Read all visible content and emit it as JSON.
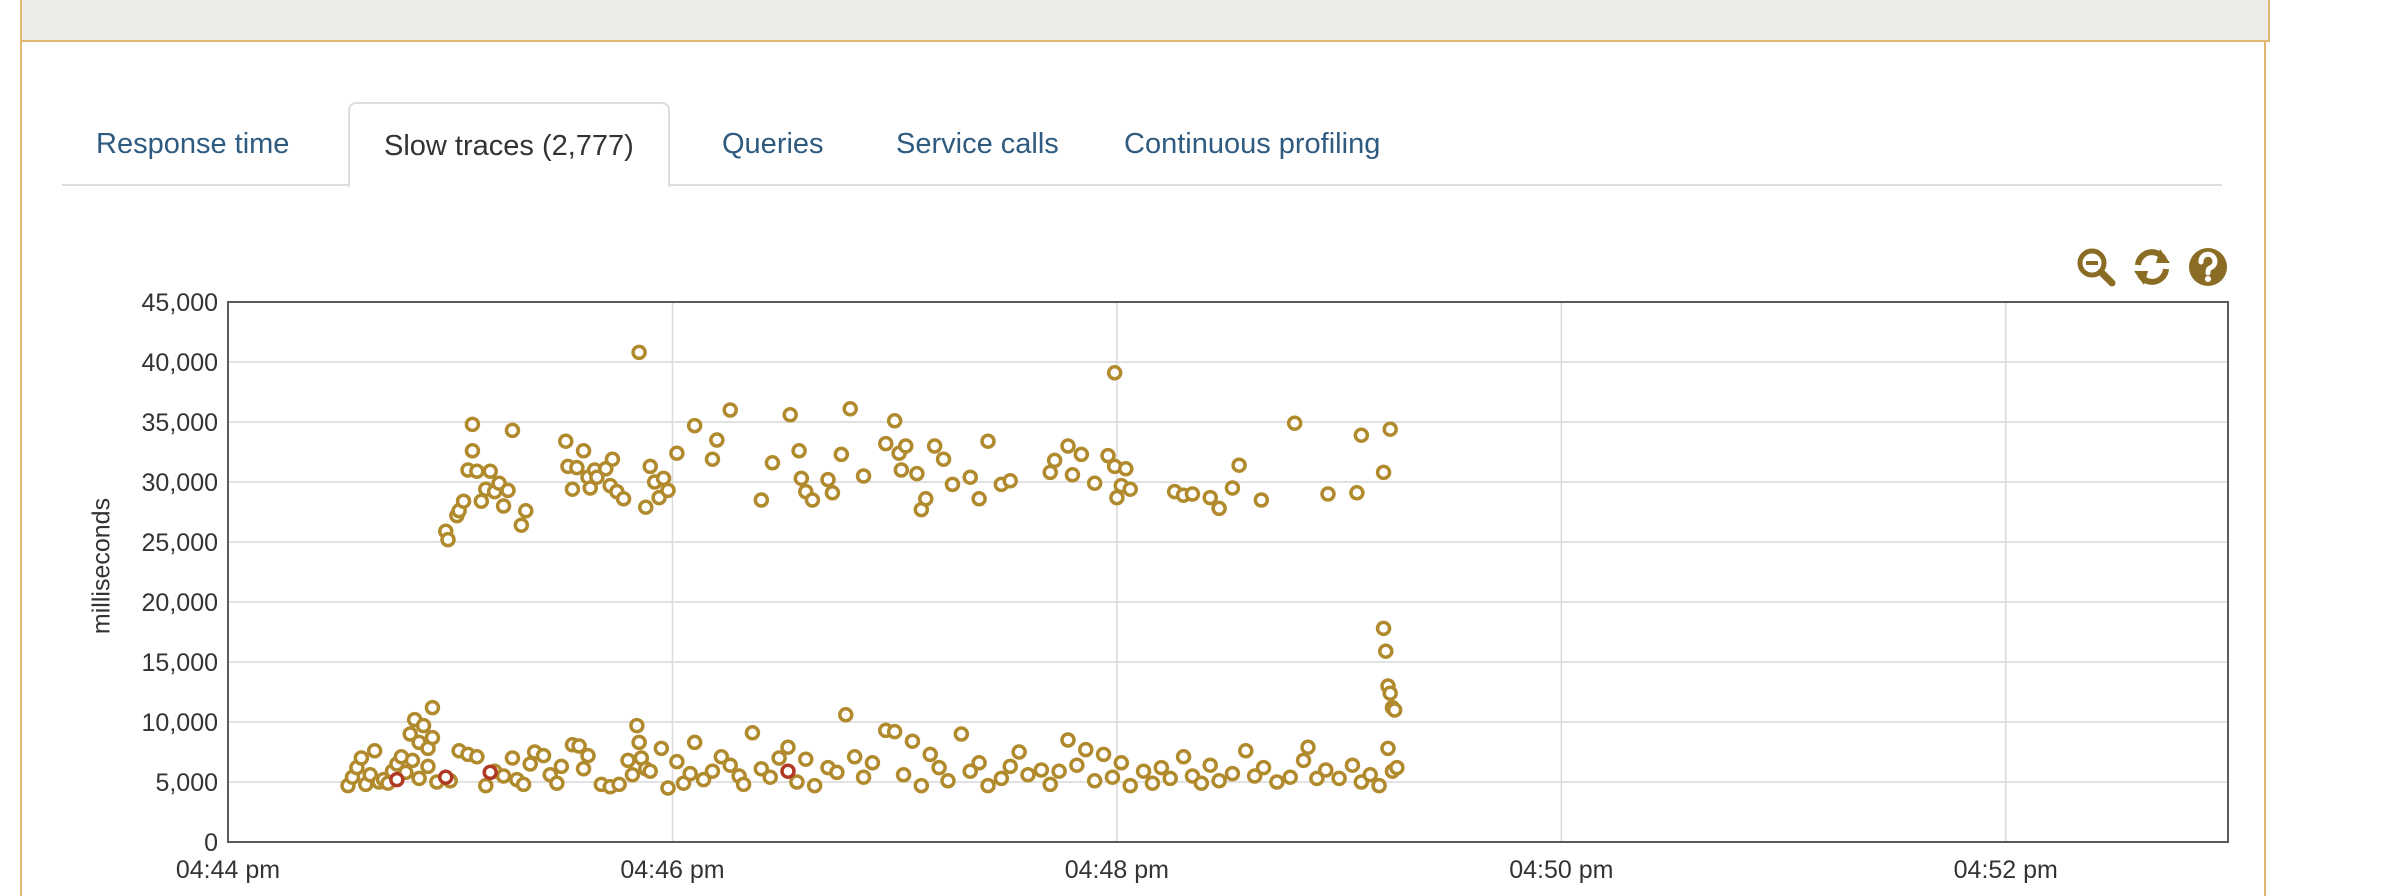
{
  "header": {
    "title": ""
  },
  "tabs": [
    {
      "label": "Response time",
      "active": false
    },
    {
      "label": "Slow traces (2,777)",
      "active": true
    },
    {
      "label": "Queries",
      "active": false
    },
    {
      "label": "Service calls",
      "active": false
    },
    {
      "label": "Continuous profiling",
      "active": false
    }
  ],
  "toolbar": {
    "icons": [
      "zoom-out-icon",
      "refresh-icon",
      "help-icon"
    ],
    "icon_color": "#8a6c24"
  },
  "colors": {
    "point_normal": "#b08a2c",
    "point_error": "#b03a24",
    "axis": "#5a5a5a",
    "grid": "#d9d9d9"
  },
  "chart_data": {
    "type": "scatter",
    "ylabel": "milliseconds",
    "xlabel": "",
    "title": "",
    "ylim": [
      0,
      45000
    ],
    "y_ticks": [
      "0",
      "5,000",
      "10,000",
      "15,000",
      "20,000",
      "25,000",
      "30,000",
      "35,000",
      "40,000",
      "45,000"
    ],
    "y_tick_values": [
      0,
      5000,
      10000,
      15000,
      20000,
      25000,
      30000,
      35000,
      40000,
      45000
    ],
    "xlim_minutes": [
      0,
      9
    ],
    "x_ticks": [
      "04:44 pm",
      "04:46 pm",
      "04:48 pm",
      "04:50 pm",
      "04:52 pm"
    ],
    "x_tick_minutes": [
      0,
      2,
      4,
      6,
      8
    ],
    "grid": true,
    "series": [
      {
        "name": "",
        "color": "#b08a2c",
        "points": [
          [
            0.54,
            4700
          ],
          [
            0.56,
            5400
          ],
          [
            0.58,
            6200
          ],
          [
            0.6,
            7000
          ],
          [
            0.62,
            4800
          ],
          [
            0.64,
            5600
          ],
          [
            0.66,
            7600
          ],
          [
            0.68,
            5000
          ],
          [
            0.7,
            5200
          ],
          [
            0.72,
            4900
          ],
          [
            0.74,
            5900
          ],
          [
            0.76,
            6500
          ],
          [
            0.78,
            7100
          ],
          [
            0.8,
            5800
          ],
          [
            0.82,
            9000
          ],
          [
            0.83,
            6800
          ],
          [
            0.84,
            10200
          ],
          [
            0.86,
            5300
          ],
          [
            0.86,
            8300
          ],
          [
            0.88,
            9700
          ],
          [
            0.9,
            6300
          ],
          [
            0.9,
            7800
          ],
          [
            0.92,
            11200
          ],
          [
            0.92,
            8700
          ],
          [
            0.94,
            5000
          ],
          [
            0.98,
            25900
          ],
          [
            0.99,
            25200
          ],
          [
            1.03,
            27200
          ],
          [
            1.04,
            27600
          ],
          [
            1.06,
            28400
          ],
          [
            1.08,
            31000
          ],
          [
            1.1,
            32600
          ],
          [
            1.1,
            34800
          ],
          [
            1.12,
            30900
          ],
          [
            1.14,
            28400
          ],
          [
            1.16,
            29400
          ],
          [
            1.18,
            30900
          ],
          [
            1.2,
            29200
          ],
          [
            1.22,
            29900
          ],
          [
            1.24,
            28000
          ],
          [
            1.26,
            29300
          ],
          [
            1.28,
            34300
          ],
          [
            1.32,
            26400
          ],
          [
            1.34,
            27600
          ],
          [
            1.52,
            33400
          ],
          [
            1.53,
            31300
          ],
          [
            1.55,
            29400
          ],
          [
            1.57,
            31200
          ],
          [
            1.6,
            32600
          ],
          [
            1.62,
            30400
          ],
          [
            1.63,
            29500
          ],
          [
            1.65,
            31000
          ],
          [
            1.66,
            30400
          ],
          [
            1.7,
            31100
          ],
          [
            1.72,
            29700
          ],
          [
            1.73,
            31900
          ],
          [
            1.75,
            29200
          ],
          [
            1.78,
            28600
          ],
          [
            1.85,
            40800
          ],
          [
            1.88,
            27900
          ],
          [
            1.9,
            31300
          ],
          [
            1.92,
            30000
          ],
          [
            1.94,
            28700
          ],
          [
            1.96,
            30300
          ],
          [
            1.98,
            29300
          ],
          [
            2.02,
            32400
          ],
          [
            2.1,
            34700
          ],
          [
            2.18,
            31900
          ],
          [
            2.2,
            33500
          ],
          [
            2.26,
            36000
          ],
          [
            2.4,
            28500
          ],
          [
            2.45,
            31600
          ],
          [
            2.53,
            35600
          ],
          [
            2.57,
            32600
          ],
          [
            2.58,
            30300
          ],
          [
            2.6,
            29200
          ],
          [
            2.63,
            28500
          ],
          [
            2.7,
            30200
          ],
          [
            2.72,
            29100
          ],
          [
            2.76,
            32300
          ],
          [
            2.8,
            36100
          ],
          [
            2.86,
            30500
          ],
          [
            2.96,
            33200
          ],
          [
            3.0,
            35100
          ],
          [
            3.02,
            32400
          ],
          [
            3.03,
            31000
          ],
          [
            3.05,
            33000
          ],
          [
            3.1,
            30700
          ],
          [
            3.12,
            27700
          ],
          [
            3.14,
            28600
          ],
          [
            3.18,
            33000
          ],
          [
            3.22,
            31900
          ],
          [
            3.26,
            29800
          ],
          [
            3.34,
            30400
          ],
          [
            3.38,
            28600
          ],
          [
            3.42,
            33400
          ],
          [
            3.48,
            29800
          ],
          [
            3.52,
            30100
          ],
          [
            3.7,
            30800
          ],
          [
            3.72,
            31800
          ],
          [
            3.78,
            33000
          ],
          [
            3.8,
            30600
          ],
          [
            3.84,
            32300
          ],
          [
            3.9,
            29900
          ],
          [
            3.96,
            32200
          ],
          [
            3.99,
            31300
          ],
          [
            4.0,
            28700
          ],
          [
            4.02,
            29700
          ],
          [
            4.04,
            31100
          ],
          [
            3.99,
            39100
          ],
          [
            4.06,
            29400
          ],
          [
            4.26,
            29200
          ],
          [
            4.3,
            28900
          ],
          [
            4.34,
            29000
          ],
          [
            4.42,
            28700
          ],
          [
            4.46,
            27800
          ],
          [
            4.52,
            29500
          ],
          [
            4.55,
            31400
          ],
          [
            4.65,
            28500
          ],
          [
            4.8,
            34900
          ],
          [
            4.95,
            29000
          ],
          [
            5.1,
            33900
          ],
          [
            5.08,
            29100
          ],
          [
            5.2,
            30800
          ],
          [
            5.23,
            34400
          ],
          [
            1.0,
            5100
          ],
          [
            1.04,
            7600
          ],
          [
            1.08,
            7300
          ],
          [
            1.12,
            7100
          ],
          [
            1.16,
            4700
          ],
          [
            1.2,
            5900
          ],
          [
            1.24,
            5500
          ],
          [
            1.28,
            7000
          ],
          [
            1.3,
            5200
          ],
          [
            1.33,
            4800
          ],
          [
            1.36,
            6500
          ],
          [
            1.38,
            7500
          ],
          [
            1.42,
            7200
          ],
          [
            1.45,
            5600
          ],
          [
            1.48,
            4900
          ],
          [
            1.5,
            6300
          ],
          [
            1.55,
            8100
          ],
          [
            1.58,
            8000
          ],
          [
            1.6,
            6100
          ],
          [
            1.62,
            7200
          ],
          [
            1.68,
            4800
          ],
          [
            1.72,
            4600
          ],
          [
            1.76,
            4800
          ],
          [
            1.8,
            6800
          ],
          [
            1.82,
            5600
          ],
          [
            1.84,
            9700
          ],
          [
            1.85,
            8300
          ],
          [
            1.86,
            7000
          ],
          [
            1.88,
            6100
          ],
          [
            1.9,
            5900
          ],
          [
            1.95,
            7800
          ],
          [
            1.98,
            4500
          ],
          [
            2.02,
            6700
          ],
          [
            2.05,
            4900
          ],
          [
            2.08,
            5700
          ],
          [
            2.1,
            8300
          ],
          [
            2.14,
            5200
          ],
          [
            2.18,
            5900
          ],
          [
            2.22,
            7100
          ],
          [
            2.26,
            6400
          ],
          [
            2.3,
            5500
          ],
          [
            2.32,
            4800
          ],
          [
            2.36,
            9100
          ],
          [
            2.4,
            6100
          ],
          [
            2.44,
            5400
          ],
          [
            2.48,
            7000
          ],
          [
            2.52,
            7900
          ],
          [
            2.56,
            5000
          ],
          [
            2.6,
            6900
          ],
          [
            2.64,
            4700
          ],
          [
            2.7,
            6200
          ],
          [
            2.74,
            5800
          ],
          [
            2.78,
            10600
          ],
          [
            2.82,
            7100
          ],
          [
            2.86,
            5400
          ],
          [
            2.9,
            6600
          ],
          [
            2.96,
            9300
          ],
          [
            3.0,
            9200
          ],
          [
            3.04,
            5600
          ],
          [
            3.08,
            8400
          ],
          [
            3.12,
            4700
          ],
          [
            3.16,
            7300
          ],
          [
            3.2,
            6200
          ],
          [
            3.24,
            5100
          ],
          [
            3.3,
            9000
          ],
          [
            3.34,
            5900
          ],
          [
            3.38,
            6600
          ],
          [
            3.42,
            4700
          ],
          [
            3.48,
            5300
          ],
          [
            3.52,
            6300
          ],
          [
            3.56,
            7500
          ],
          [
            3.6,
            5600
          ],
          [
            3.66,
            6000
          ],
          [
            3.7,
            4800
          ],
          [
            3.74,
            5900
          ],
          [
            3.78,
            8500
          ],
          [
            3.82,
            6400
          ],
          [
            3.86,
            7700
          ],
          [
            3.9,
            5100
          ],
          [
            3.94,
            7300
          ],
          [
            3.98,
            5400
          ],
          [
            4.02,
            6600
          ],
          [
            4.06,
            4700
          ],
          [
            4.12,
            5900
          ],
          [
            4.16,
            4900
          ],
          [
            4.2,
            6200
          ],
          [
            4.24,
            5300
          ],
          [
            4.3,
            7100
          ],
          [
            4.34,
            5500
          ],
          [
            4.38,
            4900
          ],
          [
            4.42,
            6400
          ],
          [
            4.46,
            5100
          ],
          [
            4.52,
            5700
          ],
          [
            4.58,
            7600
          ],
          [
            4.62,
            5500
          ],
          [
            4.66,
            6200
          ],
          [
            4.72,
            5000
          ],
          [
            4.78,
            5400
          ],
          [
            4.84,
            6800
          ],
          [
            4.86,
            7900
          ],
          [
            4.9,
            5300
          ],
          [
            4.94,
            6000
          ],
          [
            5.0,
            5300
          ],
          [
            5.06,
            6400
          ],
          [
            5.1,
            5000
          ],
          [
            5.14,
            5600
          ],
          [
            5.18,
            4700
          ],
          [
            5.22,
            7800
          ],
          [
            5.24,
            5900
          ],
          [
            5.26,
            6200
          ],
          [
            5.2,
            17800
          ],
          [
            5.21,
            15900
          ],
          [
            5.22,
            13000
          ],
          [
            5.23,
            12400
          ],
          [
            5.24,
            11200
          ],
          [
            5.25,
            11000
          ]
        ]
      },
      {
        "name": "",
        "color": "#b03a24",
        "points": [
          [
            0.76,
            5200
          ],
          [
            0.98,
            5400
          ],
          [
            1.18,
            5800
          ],
          [
            2.52,
            5900
          ]
        ]
      }
    ]
  }
}
